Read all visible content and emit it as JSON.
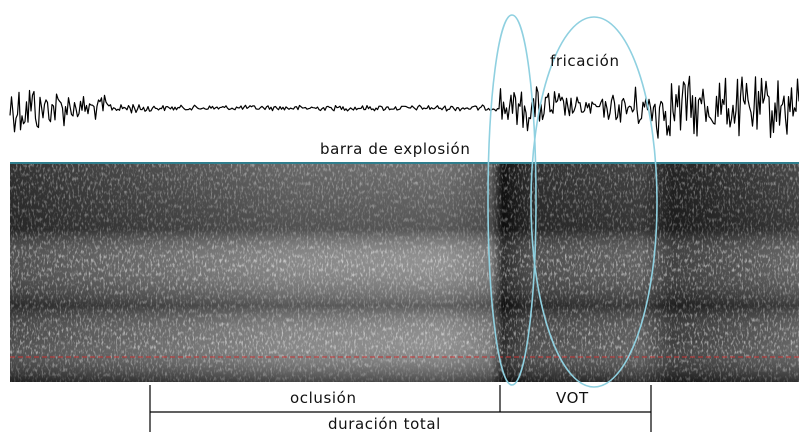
{
  "labels": {
    "frication": "fricación",
    "burst_bar": "barra de explosión",
    "occlusion": "oclusión",
    "vot": "VOT",
    "total_duration": "duración total"
  },
  "colors": {
    "background": "#ffffff",
    "waveform": "#000000",
    "spectrogram_top_line": "#2e7d8c",
    "highlight_ellipse": "#8fd0e0",
    "reference_dashed_line": "#c83232",
    "bracket_line": "#000000",
    "label_text": "#111111"
  }
}
